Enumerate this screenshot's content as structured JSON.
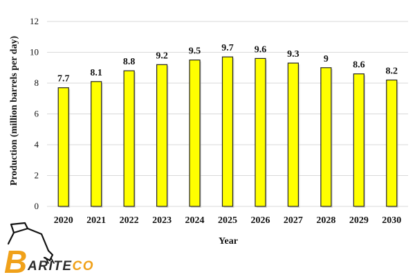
{
  "chart_data": {
    "type": "bar",
    "title": "",
    "xlabel": "Year",
    "ylabel": "Production (million barrels per day)",
    "ylim": [
      0,
      12
    ],
    "yticks": [
      0,
      2,
      4,
      6,
      8,
      10,
      12
    ],
    "grid": true,
    "categories": [
      "2020",
      "2021",
      "2022",
      "2023",
      "2024",
      "2025",
      "2026",
      "2027",
      "2028",
      "2029",
      "2030"
    ],
    "values": [
      7.7,
      8.1,
      8.8,
      9.2,
      9.5,
      9.7,
      9.6,
      9.3,
      9,
      8.6,
      8.2
    ],
    "data_labels": [
      "7.7",
      "8.1",
      "8.8",
      "9.2",
      "9.5",
      "9.7",
      "9.6",
      "9.3",
      "9",
      "8.6",
      "8.2"
    ],
    "bar_color": "#ffff00",
    "bar_edge_color": "#222222",
    "grid_color": "#d9d9d9"
  },
  "logo": {
    "text": "BARITECO",
    "mark_letter": "B",
    "brand_color": "#f0a11a",
    "icon": "excavator-icon"
  }
}
